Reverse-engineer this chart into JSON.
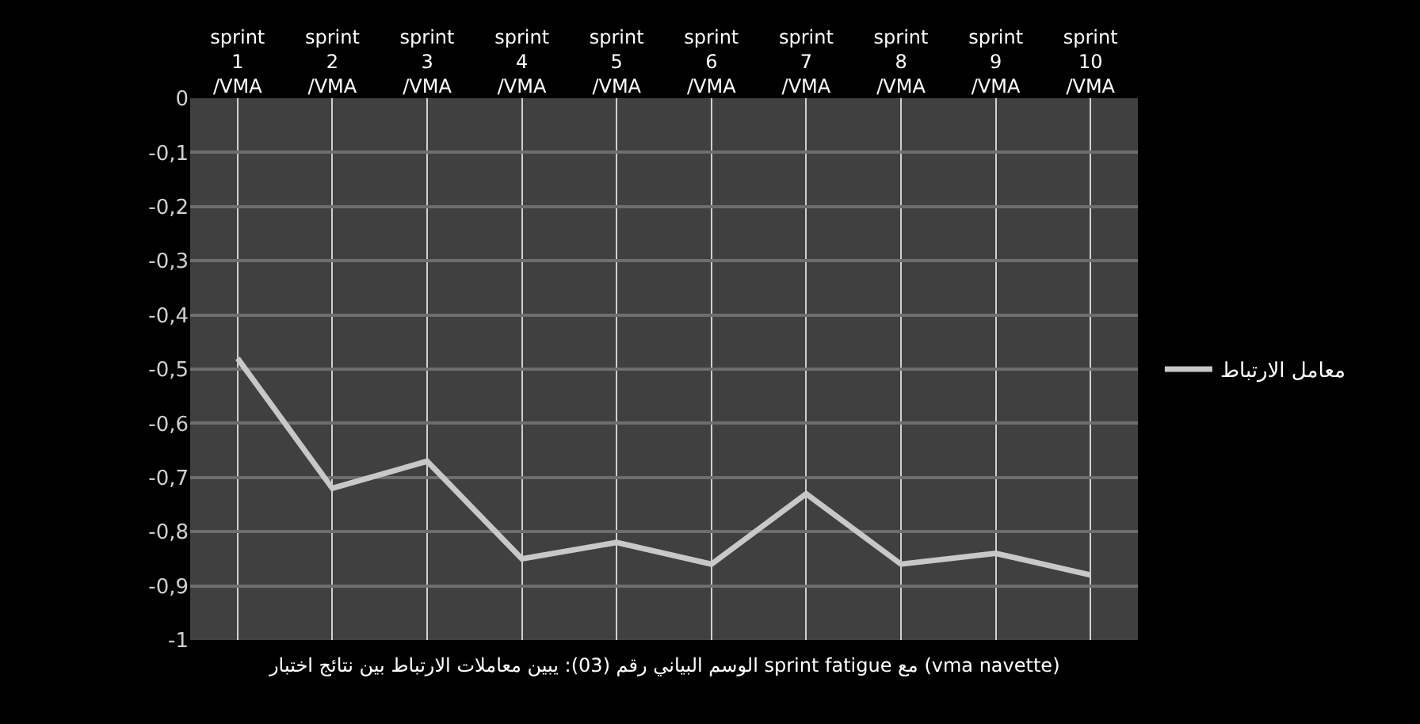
{
  "chart_data": {
    "type": "line",
    "categories": [
      "sprint 1 /VMA",
      "sprint 2 /VMA",
      "sprint 3 /VMA",
      "sprint 4 /VMA",
      "sprint 5 /VMA",
      "sprint 6 /VMA",
      "sprint 7 /VMA",
      "sprint 8 /VMA",
      "sprint 9 /VMA",
      "sprint 10 /VMA"
    ],
    "series": [
      {
        "name": "معامل الارتباط",
        "color": "#c8c8c8",
        "values": [
          -0.48,
          -0.72,
          -0.67,
          -0.85,
          -0.82,
          -0.86,
          -0.73,
          -0.86,
          -0.84,
          -0.88
        ]
      }
    ],
    "ylim": [
      -1,
      0
    ],
    "yticks": [
      {
        "value": 0,
        "label": "0"
      },
      {
        "value": -0.1,
        "label": "-0,1"
      },
      {
        "value": -0.2,
        "label": "-0,2"
      },
      {
        "value": -0.3,
        "label": "-0,3"
      },
      {
        "value": -0.4,
        "label": "-0,4"
      },
      {
        "value": -0.5,
        "label": "-0,5"
      },
      {
        "value": -0.6,
        "label": "-0,6"
      },
      {
        "value": -0.7,
        "label": "-0,7"
      },
      {
        "value": -0.8,
        "label": "-0,8"
      },
      {
        "value": -0.9,
        "label": "-0,9"
      },
      {
        "value": -1,
        "label": "-1"
      }
    ],
    "grid": true,
    "legend": "right",
    "marker": "none",
    "line_style": "solid",
    "annotations": [
      "الوسم البياني رقم (03): يبين معاملات الارتباط بين نتائج اختبار sprint fatigue مع (vma navette)"
    ]
  }
}
